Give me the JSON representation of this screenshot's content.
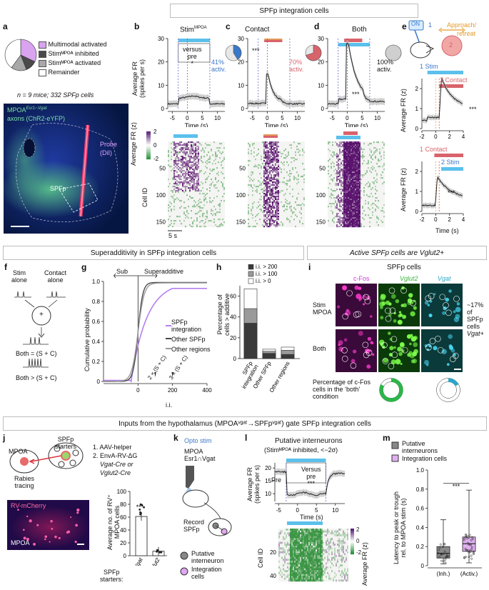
{
  "banners": {
    "top": "SPFp integration cells",
    "superadd": "Superadditivity in SPFp integration cells",
    "active": "Active SPFp cells are Vglut2+",
    "inputs": "Inputs from the hypothalamus (MPOAᵛᵍᵃᵗ→SPFpᵛᵍᵃᵗ) gate SPFp integration cells"
  },
  "panel_letters": {
    "a": "a",
    "b": "b",
    "c": "c",
    "d": "d",
    "e": "e",
    "f": "f",
    "g": "g",
    "h": "h",
    "i": "i",
    "j": "j",
    "k": "k",
    "l": "l",
    "m": "m"
  },
  "a": {
    "legend": [
      "Multimodal activated",
      "Stimᴹᴾᴼᴬ inhibited",
      "Stimᴹᴾᴼᴬ activated",
      "Remainder"
    ],
    "legend_colors": [
      "#d9a3f0",
      "#4a4a4a",
      "#a8a8a8",
      "#ffffff"
    ],
    "pie_fractions": [
      0.32,
      0.12,
      0.16,
      0.4
    ],
    "summary": "n = 9 mice; 332 SPFp cells",
    "img_label1": "MPOA",
    "img_label1_sup": "Esr1∩Vgat",
    "img_label2": "axons (ChR2-eYFP)",
    "probe": "Probe",
    "dil": "(DiI)",
    "spfp": "SPFp"
  },
  "b": {
    "title": "Stim",
    "title_sup": "MPOA",
    "box": "versus",
    "box2": "pre",
    "sig": "*",
    "pct": "41%",
    "pct2": "activ.",
    "pie_frac": 0.41,
    "pie_color": "#3a78c9"
  },
  "c": {
    "title": "Contact",
    "sig": "***",
    "pct": "70%",
    "pct2": "activ.",
    "pie_frac": 0.7,
    "pie_color": "#d9636b"
  },
  "d": {
    "title": "Both",
    "sig": "***",
    "pct": "100%",
    "pct2": "activ.",
    "pie_frac": 1.0,
    "pie_color": "#cfcfcf"
  },
  "trace_axes": {
    "ylabel": "Average FR",
    "ylabel2": "(spikes per s)",
    "xlabel": "Time (s)",
    "yticks": [
      "0",
      "10",
      "20",
      "30"
    ],
    "xticks": [
      "-5",
      "0",
      "5",
      "10"
    ]
  },
  "heat_axes": {
    "cbar_label": "Average FR (z)",
    "cbar_ticks": [
      "2",
      "0",
      "-2"
    ],
    "ylabel": "Cell ID",
    "yticks": [
      "50",
      "100",
      "150"
    ],
    "scale": "5 s"
  },
  "e": {
    "on": "ON",
    "one": "1",
    "two": "2",
    "approach": "Approach/",
    "retreat": "retreat",
    "top_bar1": "1 Stim",
    "top_bar2": "2 Contact",
    "bot_bar1": "1 Contact",
    "bot_bar2": "2 Stim",
    "sig": "***",
    "sig2": "***",
    "ylabel": "Average FR (z)",
    "xlabel": "Time (s)",
    "yticks_top": [
      "0",
      "1",
      "2"
    ],
    "yticks_bot": [
      "0",
      "1",
      "2"
    ],
    "xticks": [
      "-2",
      "0",
      "2",
      "4"
    ]
  },
  "f": {
    "stim": "Stim",
    "alone1": "alone",
    "contact": "Contact",
    "alone2": "alone",
    "plus": "+",
    "eq": "Both = (S + C)",
    "gt": "Both > (S + C)"
  },
  "g": {
    "ylabel": "Cumulative probability",
    "xlabel": "i.i.",
    "sub": "Sub",
    "super": "Superadditive",
    "yticks": [
      "0",
      "0.2",
      "0.4",
      "0.6",
      "0.8",
      "1.0"
    ],
    "xticks": [
      "0",
      "200",
      "400"
    ],
    "lab2": "2 × (S + C)",
    "lab3": "3 × (S + C)",
    "leg1": "SPFp",
    "leg1b": "integration",
    "leg2": "Other SPFp",
    "leg3": "Other regions"
  },
  "h": {
    "ylabel": "Percentage of",
    "ylabel2": "cells > additive",
    "yticks": [
      "0",
      "20",
      "40",
      "60"
    ],
    "legend": [
      "i.i. > 200",
      "i.i. > 100",
      "i.i. > 0"
    ],
    "categories": [
      "SPFp integration",
      "Other SPFp",
      "Other regions"
    ],
    "cat_lines": [
      [
        "SPFp",
        "integration"
      ],
      [
        "Other SPFp"
      ],
      [
        "Other regions"
      ]
    ],
    "chart_data": {
      "type": "bar",
      "categories": [
        "SPFp integration",
        "Other SPFp",
        "Other regions"
      ],
      "series": [
        {
          "name": "i.i. > 0",
          "values": [
            67,
            9,
            11
          ]
        },
        {
          "name": "i.i. > 100",
          "values": [
            48,
            7,
            8
          ]
        },
        {
          "name": "i.i. > 200",
          "values": [
            34,
            5,
            4
          ]
        }
      ],
      "ylim": [
        0,
        70
      ]
    }
  },
  "i": {
    "title": "SPFp cells",
    "col1": "c-Fos",
    "col2": "Vglut2",
    "col3": "Vgat",
    "row1": "Stim",
    "row1b": "MPOA",
    "row2": "Both",
    "note": [
      "~17%",
      "of",
      "SPFp",
      "cells",
      "Vgat+"
    ],
    "pct_label": "Percentage of c-Fos",
    "pct_label2": "cells in the ‘both’",
    "pct_label3": "condition",
    "donut1_frac": 0.83,
    "donut2_frac": 0.17
  },
  "j": {
    "mpoa": "MPOA",
    "starters": "SPFp",
    "starters2": "starters",
    "rabies": "Rabies",
    "tracing": "tracing",
    "step1": "1. AAV-helper",
    "step2": "2. EnvA-RV-ΔG",
    "step3": "Vgat-Cre or",
    "step4": "Vglut2-Cre",
    "img_top": "RV-mCherry",
    "img_bot": "MPOA",
    "ylabel": "Average no. of RV⁺",
    "ylabel2": "MPOA cells",
    "yticks": [
      "0",
      "20",
      "40",
      "60",
      "80",
      "100"
    ],
    "cat1": "Vgat",
    "cat2": "Vglut2",
    "cat_lab": "SPFp",
    "cat_lab2": "starters:",
    "sig": "***",
    "chart_data": {
      "type": "bar",
      "categories": [
        "Vgat",
        "Vglut2"
      ],
      "values": [
        61,
        7
      ],
      "ylim": [
        0,
        100
      ]
    }
  },
  "k": {
    "opto": "Opto stim",
    "l1": "MPOA",
    "l2": "Esr1∩Vgat",
    "rec": "Record",
    "rec2": "SPFp",
    "leg1": "Putative",
    "leg1b": "interneuron",
    "leg2": "Integration",
    "leg2b": "cells"
  },
  "l": {
    "title": "Putative interneurons",
    "title2": "(Stimᴹᴾᴼᴬ inhibited, <−2σ)",
    "box": "Versus",
    "box2": "pre",
    "sig": "***",
    "pre": "Pre",
    "ylabel": "Average FR",
    "ylabel2": "(spikes per s)",
    "xlabel": "Time (s)",
    "yticks": [
      "10",
      "15",
      "20"
    ],
    "xticks": [
      "-5",
      "0",
      "5",
      "10"
    ],
    "hm_ylabel": "Cell ID",
    "hm_yticks": [
      "20",
      "40"
    ],
    "cbar_ticks": [
      "2",
      "0",
      "-2"
    ],
    "cbar_label": "Average FR (z)"
  },
  "m": {
    "leg1": "Putative",
    "leg1b": "interneurons",
    "leg2": "Integration cells",
    "ylabel": "Latency to peak or trough",
    "ylabel2": "rel. to MPOA stim (s)",
    "yticks": [
      "0",
      "0.2",
      "0.4",
      "0.6",
      "0.8",
      "1.0"
    ],
    "cat1": "(Inh.)",
    "cat2": "(Activ.)",
    "sig": "***",
    "chart_data": {
      "type": "box",
      "categories": [
        "(Inh.)",
        "(Activ.)"
      ],
      "series": [
        {
          "name": "Putative interneurons",
          "min": 0.02,
          "q1": 0.08,
          "median": 0.13,
          "q3": 0.2,
          "max": 0.48
        },
        {
          "name": "Integration cells",
          "min": 0.03,
          "q1": 0.15,
          "median": 0.23,
          "q3": 0.3,
          "max": 0.79
        }
      ],
      "ylim": [
        0,
        1.0
      ]
    }
  }
}
